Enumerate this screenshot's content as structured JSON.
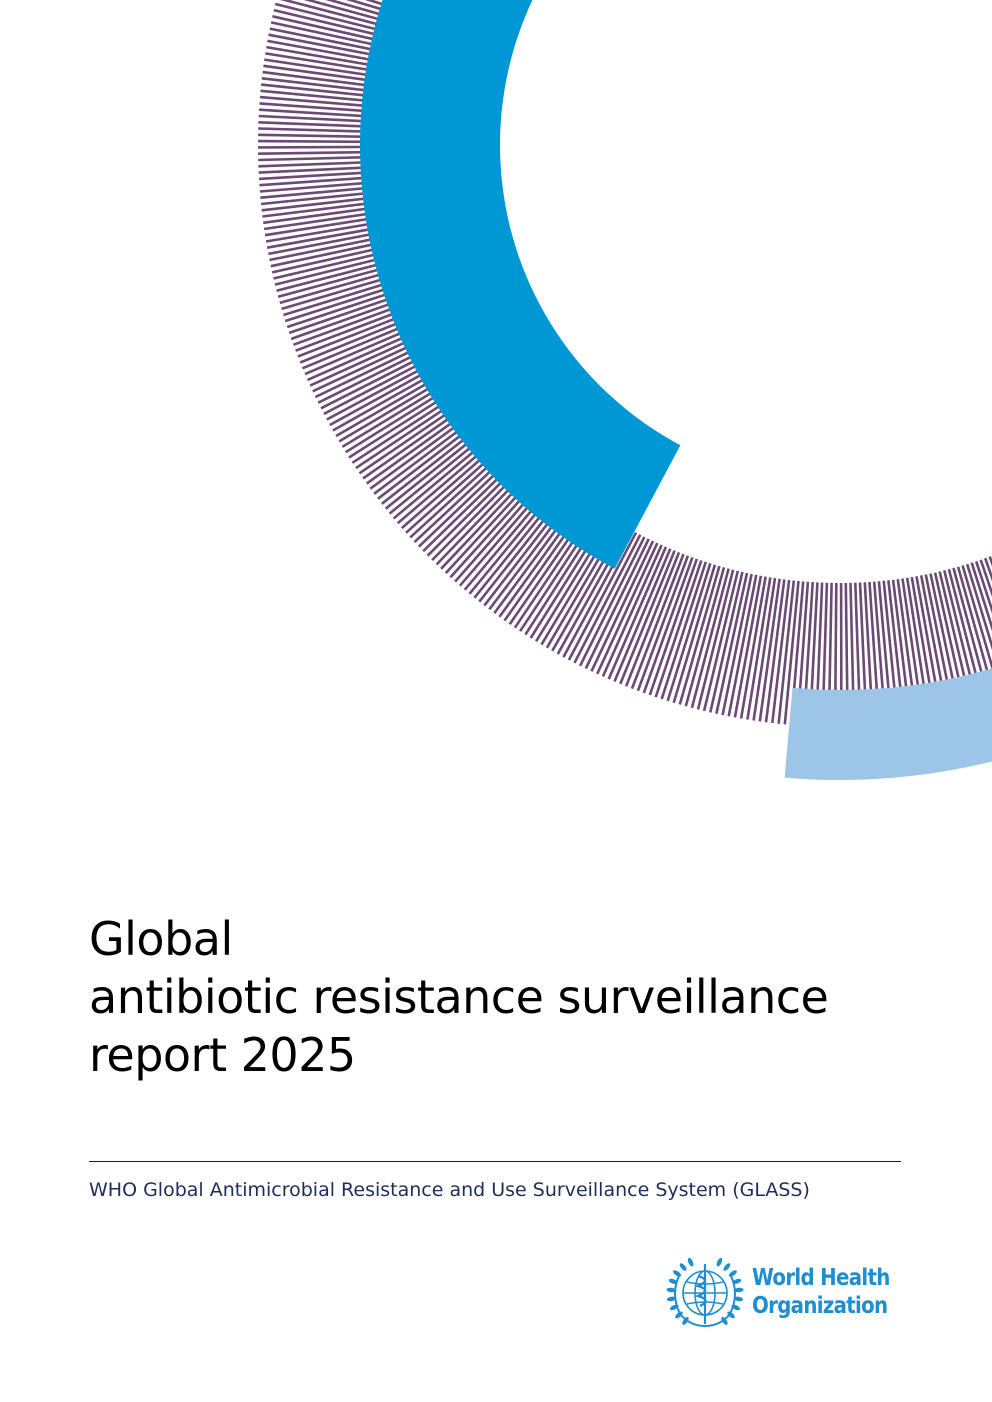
{
  "cover": {
    "title_lines": [
      "Global",
      "antibiotic resistance surveillance",
      "report 2025"
    ],
    "subtitle": "WHO Global Antimicrobial Resistance and Use Surveillance System (GLASS)"
  },
  "publisher": {
    "name_lines": [
      "World Health",
      "Organization"
    ],
    "emblem_icon": "who-emblem-icon"
  },
  "colors": {
    "ring_blue": "#0098d4",
    "ring_stripes": "#6b4a73",
    "ring_light_blue": "#9cc5e8",
    "title": "#000000",
    "subtitle": "#1f2d5a",
    "who_blue": "#1d8fd1"
  }
}
